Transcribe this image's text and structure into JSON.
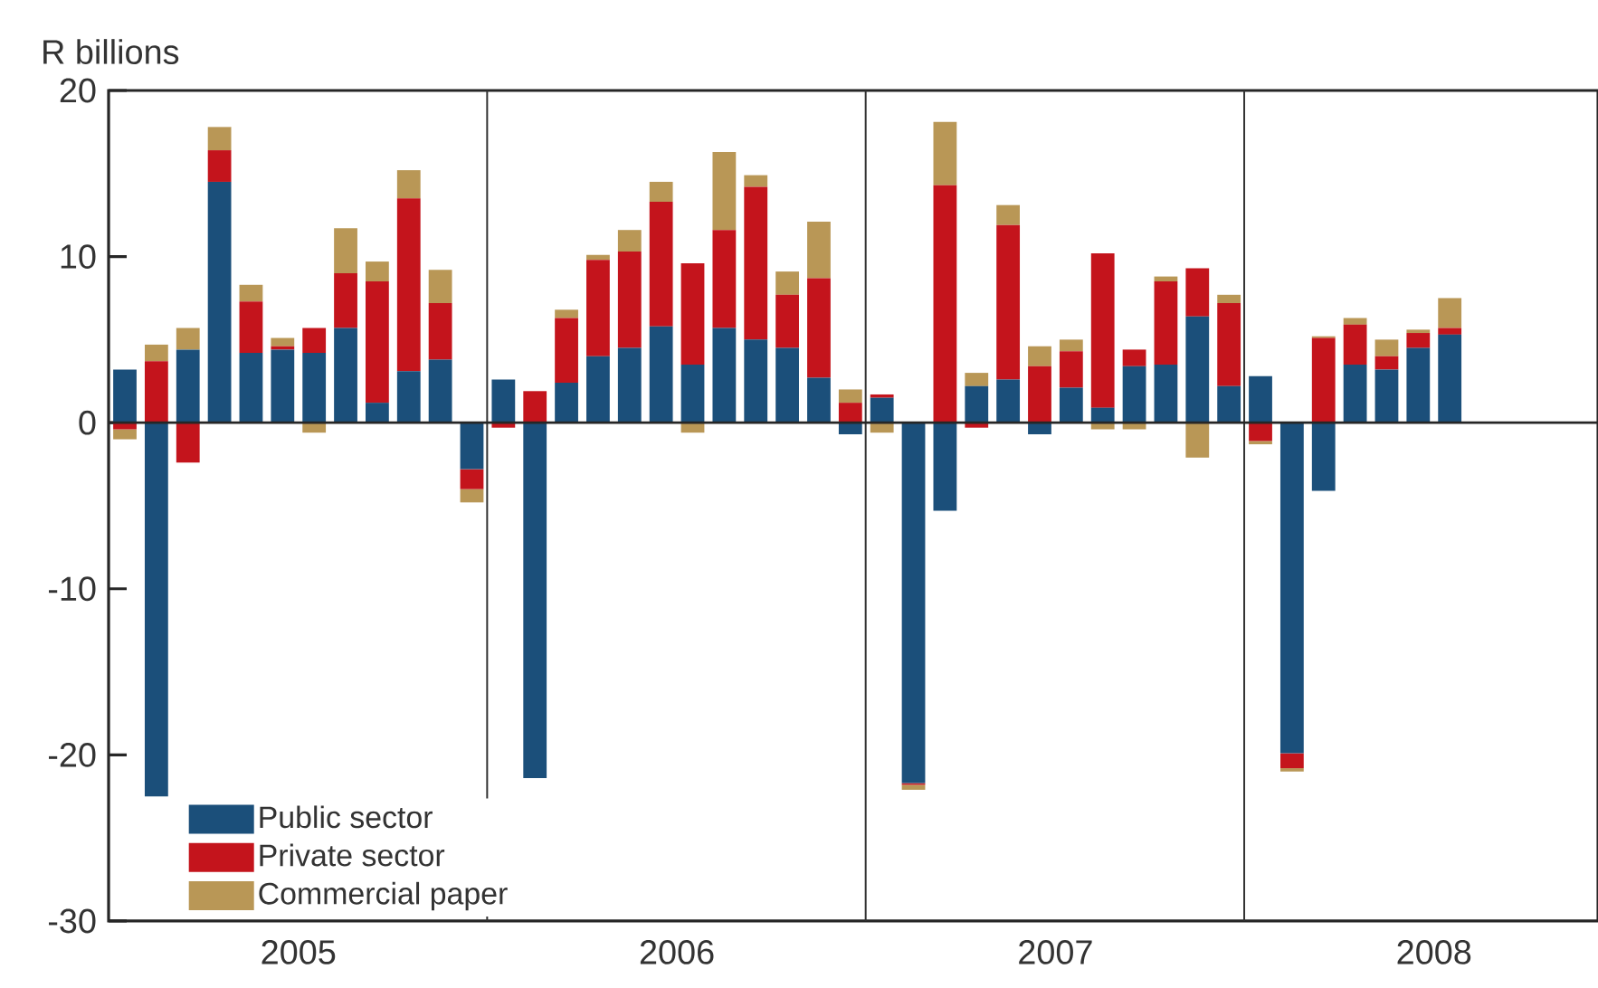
{
  "chart_data": {
    "type": "bar",
    "ylabel": "R billions",
    "stacked": true,
    "legend": "bottom left",
    "x": [
      "2005-01",
      "2005-02",
      "2005-03",
      "2005-04",
      "2005-05",
      "2005-06",
      "2005-07",
      "2005-08",
      "2005-09",
      "2005-10",
      "2005-11",
      "2005-12",
      "2006-01",
      "2006-02",
      "2006-03",
      "2006-04",
      "2006-05",
      "2006-06",
      "2006-07",
      "2006-08",
      "2006-09",
      "2006-10",
      "2006-11",
      "2006-12",
      "2007-01",
      "2007-02",
      "2007-03",
      "2007-04",
      "2007-05",
      "2007-06",
      "2007-07",
      "2007-08",
      "2007-09",
      "2007-10",
      "2007-11",
      "2007-12",
      "2008-01",
      "2008-02",
      "2008-03",
      "2008-04",
      "2008-05",
      "2008-06",
      "2008-07"
    ],
    "xlim": [
      "2004-12-16",
      "2008-11-22"
    ],
    "xticks": [
      {
        "value": "2005-06-16",
        "label": "2005"
      },
      {
        "value": "2006-06-16",
        "label": "2006"
      },
      {
        "value": "2007-06-16",
        "label": "2007"
      },
      {
        "value": "2008-06-16",
        "label": "2008"
      }
    ],
    "ylim": [
      -30,
      20
    ],
    "yticks": [
      -30,
      -20,
      -10,
      0,
      10,
      20
    ],
    "ref_lines": [
      {
        "axis": "x",
        "value": "2005-12-16",
        "color": "#333333"
      },
      {
        "axis": "x",
        "value": "2006-12-16",
        "color": "#333333"
      },
      {
        "axis": "x",
        "value": "2007-12-16",
        "color": "#333333"
      }
    ],
    "series": [
      {
        "name": "Public sector",
        "color": "#1b4f7a",
        "values": [
          3.2,
          -22.5,
          4.4,
          14.5,
          4.2,
          4.4,
          4.2,
          5.7,
          1.2,
          3.1,
          3.8,
          -2.8,
          2.6,
          -21.4,
          2.4,
          4.0,
          4.5,
          5.8,
          3.5,
          5.7,
          5.0,
          4.5,
          2.7,
          -0.7,
          1.5,
          -21.7,
          -5.3,
          2.2,
          2.6,
          -0.7,
          2.1,
          0.9,
          3.4,
          3.5,
          6.4,
          2.2,
          2.8,
          -19.9,
          -4.1,
          3.5,
          3.2,
          4.5,
          5.3
        ]
      },
      {
        "name": "Private sector",
        "color": "#c4141c",
        "values": [
          -0.4,
          3.7,
          -2.4,
          1.9,
          3.1,
          0.2,
          1.5,
          3.3,
          7.3,
          10.4,
          3.4,
          -1.2,
          -0.3,
          1.9,
          3.9,
          5.8,
          5.8,
          7.5,
          6.1,
          5.9,
          9.2,
          3.2,
          6.0,
          1.2,
          0.2,
          -0.1,
          14.3,
          -0.3,
          9.3,
          3.4,
          2.2,
          9.3,
          1.0,
          5.0,
          2.9,
          5.0,
          -1.1,
          -0.9,
          5.1,
          2.4,
          0.8,
          0.9,
          0.4
        ]
      },
      {
        "name": "Commercial paper",
        "color": "#b99756",
        "values": [
          -0.6,
          1.0,
          1.3,
          1.4,
          1.0,
          0.5,
          -0.6,
          2.7,
          1.2,
          1.7,
          2.0,
          -0.8,
          0,
          0,
          0.5,
          0.3,
          1.3,
          1.2,
          -0.6,
          4.7,
          0.7,
          1.4,
          3.4,
          0.8,
          -0.6,
          -0.3,
          3.8,
          0.8,
          1.2,
          1.2,
          0.7,
          -0.4,
          -0.4,
          0.3,
          -2.1,
          0.5,
          -0.2,
          -0.2,
          0.1,
          0.4,
          1.0,
          0.2,
          1.8
        ]
      }
    ]
  }
}
